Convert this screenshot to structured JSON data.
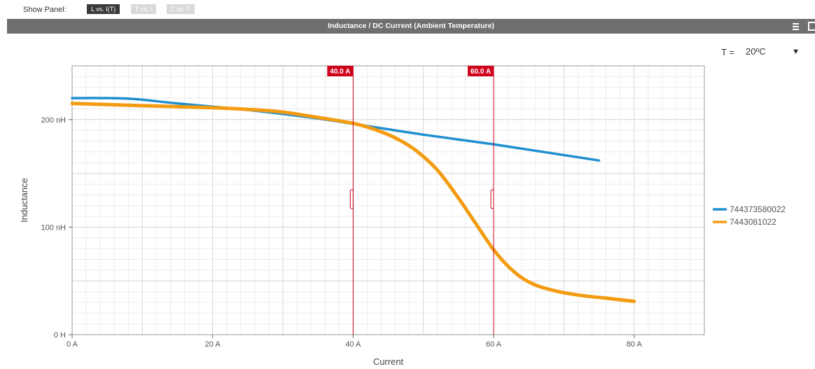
{
  "toolbar": {
    "show_panel_label": "Show Panel:",
    "tabs": [
      {
        "label": "L vs. I(T)",
        "active": true
      },
      {
        "label": "T vs. I",
        "active": false
      },
      {
        "label": "Z vs. F",
        "active": false
      }
    ]
  },
  "panel": {
    "title": "Inductance / DC Current (Ambient Temperature)",
    "menu_icon": "hamburger-menu-icon",
    "window_icon": "restore-window-icon"
  },
  "temperature": {
    "label": "T =",
    "selected": "20ºC"
  },
  "colors": {
    "series_1": "#1f8fcf",
    "series_2": "#f39c12",
    "marker": "#d0021b",
    "titlebar": "#6f6f6f"
  },
  "chart_data": {
    "type": "line",
    "title": "Inductance / DC Current (Ambient Temperature)",
    "xlabel": "Current",
    "ylabel": "Inductance",
    "xlim": [
      0,
      90
    ],
    "ylim": [
      0,
      250
    ],
    "x_ticks": [
      0,
      20,
      40,
      60,
      80
    ],
    "x_tick_labels": [
      "0 A",
      "20 A",
      "40 A",
      "60 A",
      "80 A"
    ],
    "y_ticks": [
      0,
      100,
      200
    ],
    "y_tick_labels": [
      "0 H",
      "100 nH",
      "200 nH"
    ],
    "grid": true,
    "legend_position": "right",
    "markers": [
      {
        "x": 40,
        "label": "40.0 A"
      },
      {
        "x": 60,
        "label": "60.0 A"
      }
    ],
    "series": [
      {
        "name": "744373580022",
        "color": "#1f8fcf",
        "points": [
          [
            0,
            220
          ],
          [
            8,
            219.5
          ],
          [
            15,
            215
          ],
          [
            25,
            209
          ],
          [
            35,
            201
          ],
          [
            40,
            196
          ],
          [
            45,
            191
          ],
          [
            50,
            186
          ],
          [
            55,
            181.5
          ],
          [
            60,
            177
          ],
          [
            65,
            172
          ],
          [
            70,
            167
          ],
          [
            75,
            162
          ]
        ]
      },
      {
        "name": "7443081022",
        "color": "#f39c12",
        "points": [
          [
            0,
            215
          ],
          [
            10,
            213
          ],
          [
            20,
            211
          ],
          [
            25,
            209.5
          ],
          [
            30,
            207
          ],
          [
            35,
            202
          ],
          [
            40,
            196.5
          ],
          [
            43,
            191
          ],
          [
            46,
            183
          ],
          [
            49,
            171
          ],
          [
            52,
            153
          ],
          [
            55,
            127
          ],
          [
            58,
            98
          ],
          [
            60,
            79
          ],
          [
            62,
            64
          ],
          [
            64,
            53
          ],
          [
            66,
            46
          ],
          [
            68,
            42
          ],
          [
            70,
            39
          ],
          [
            73,
            36
          ],
          [
            76,
            34
          ],
          [
            80,
            31
          ]
        ]
      }
    ]
  }
}
